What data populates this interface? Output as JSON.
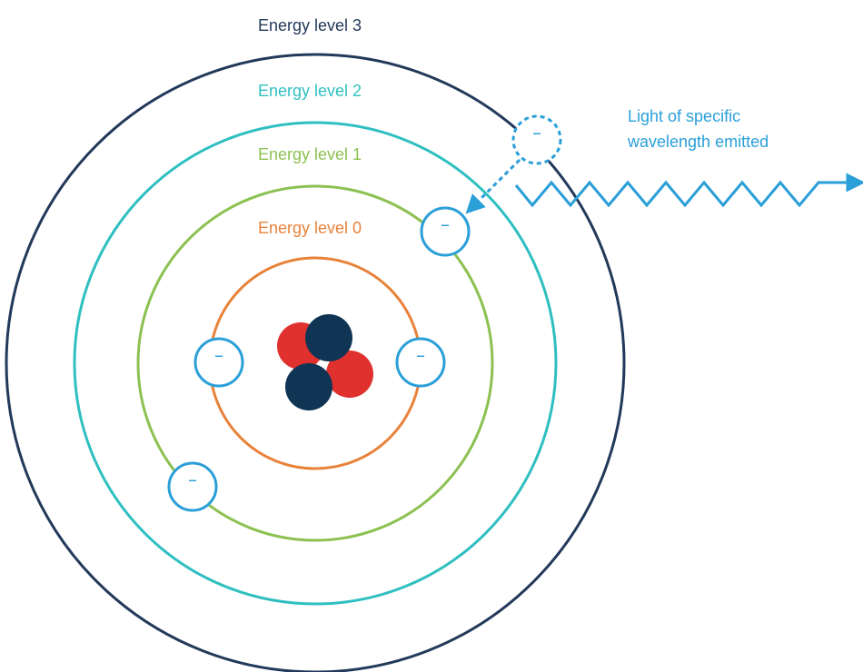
{
  "energy_levels": [
    {
      "label": "Energy level 0",
      "color": "#E8823A"
    },
    {
      "label": "Energy level 1",
      "color": "#8CC152"
    },
    {
      "label": "Energy level 2",
      "color": "#2FBFC0"
    },
    {
      "label": "Energy level 3",
      "color": "#22395A"
    }
  ],
  "emission": {
    "line1": "Light of specific",
    "line2": "wavelength emitted",
    "color": "#2A9FD8"
  },
  "electron": {
    "sign": "–",
    "color": "#2A9FD8"
  },
  "nucleus": {
    "proton_color": "#E0312E",
    "neutron_color": "#0F3454"
  }
}
